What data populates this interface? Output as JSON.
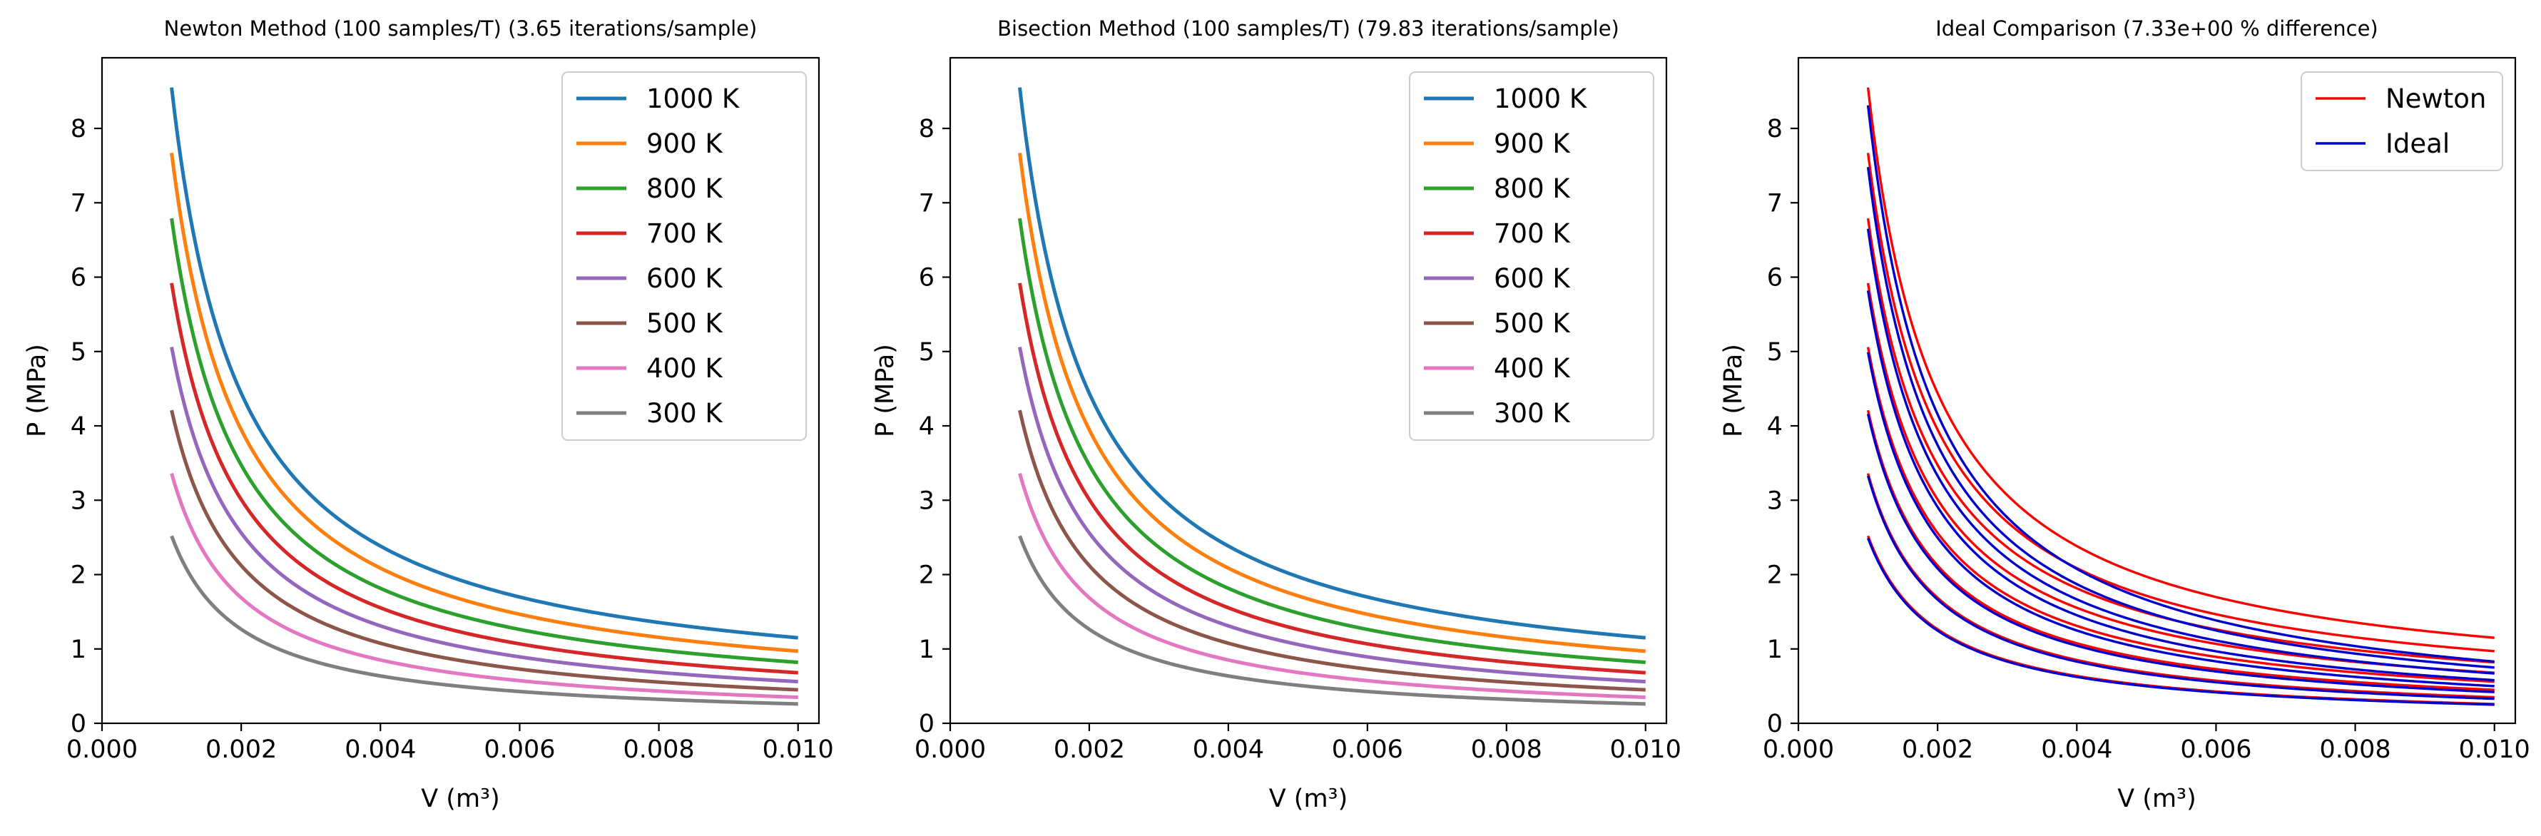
{
  "chart_data": [
    {
      "type": "line",
      "title": "Newton Method (100 samples/T) (3.65 iterations/sample)",
      "xlabel": "V (m³)",
      "ylabel": "P (MPa)",
      "xlim": [
        0,
        0.0103
      ],
      "ylim": [
        0,
        8.95
      ],
      "xticks": [
        "0.000",
        "0.002",
        "0.004",
        "0.006",
        "0.008",
        "0.010"
      ],
      "yticks": [
        "0",
        "1",
        "2",
        "3",
        "4",
        "5",
        "6",
        "7",
        "8"
      ],
      "grid": false,
      "legend_position": "top-right",
      "v_range": [
        0.001,
        0.01
      ],
      "series": [
        {
          "name": "1000 K",
          "color": "#1f77b4",
          "p_at_vmin": 8.55,
          "p_at_vmax": 1.15
        },
        {
          "name": "900 K",
          "color": "#ff7f0e",
          "p_at_vmin": 7.67,
          "p_at_vmax": 0.97
        },
        {
          "name": "800 K",
          "color": "#2ca02c",
          "p_at_vmin": 6.79,
          "p_at_vmax": 0.82
        },
        {
          "name": "700 K",
          "color": "#d62728",
          "p_at_vmin": 5.92,
          "p_at_vmax": 0.68
        },
        {
          "name": "600 K",
          "color": "#9467bd",
          "p_at_vmin": 5.06,
          "p_at_vmax": 0.56
        },
        {
          "name": "500 K",
          "color": "#8c564b",
          "p_at_vmin": 4.21,
          "p_at_vmax": 0.45
        },
        {
          "name": "400 K",
          "color": "#e377c2",
          "p_at_vmin": 3.36,
          "p_at_vmax": 0.35
        },
        {
          "name": "300 K",
          "color": "#7f7f7f",
          "p_at_vmin": 2.52,
          "p_at_vmax": 0.26
        }
      ]
    },
    {
      "type": "line",
      "title": "Bisection Method (100 samples/T) (79.83 iterations/sample)",
      "xlabel": "V (m³)",
      "ylabel": "P (MPa)",
      "xlim": [
        0,
        0.0103
      ],
      "ylim": [
        0,
        8.95
      ],
      "xticks": [
        "0.000",
        "0.002",
        "0.004",
        "0.006",
        "0.008",
        "0.010"
      ],
      "yticks": [
        "0",
        "1",
        "2",
        "3",
        "4",
        "5",
        "6",
        "7",
        "8"
      ],
      "grid": false,
      "legend_position": "top-right",
      "v_range": [
        0.001,
        0.01
      ],
      "series": [
        {
          "name": "1000 K",
          "color": "#1f77b4",
          "p_at_vmin": 8.55,
          "p_at_vmax": 1.15
        },
        {
          "name": "900 K",
          "color": "#ff7f0e",
          "p_at_vmin": 7.67,
          "p_at_vmax": 0.97
        },
        {
          "name": "800 K",
          "color": "#2ca02c",
          "p_at_vmin": 6.79,
          "p_at_vmax": 0.82
        },
        {
          "name": "700 K",
          "color": "#d62728",
          "p_at_vmin": 5.92,
          "p_at_vmax": 0.68
        },
        {
          "name": "600 K",
          "color": "#9467bd",
          "p_at_vmin": 5.06,
          "p_at_vmax": 0.56
        },
        {
          "name": "500 K",
          "color": "#8c564b",
          "p_at_vmin": 4.21,
          "p_at_vmax": 0.45
        },
        {
          "name": "400 K",
          "color": "#e377c2",
          "p_at_vmin": 3.36,
          "p_at_vmax": 0.35
        },
        {
          "name": "300 K",
          "color": "#7f7f7f",
          "p_at_vmin": 2.52,
          "p_at_vmax": 0.26
        }
      ]
    },
    {
      "type": "line",
      "title": "Ideal Comparison (7.33e+00 % difference)",
      "xlabel": "V (m³)",
      "ylabel": "P (MPa)",
      "xlim": [
        0,
        0.0103
      ],
      "ylim": [
        0,
        8.95
      ],
      "xticks": [
        "0.000",
        "0.002",
        "0.004",
        "0.006",
        "0.008",
        "0.010"
      ],
      "yticks": [
        "0",
        "1",
        "2",
        "3",
        "4",
        "5",
        "6",
        "7",
        "8"
      ],
      "grid": false,
      "legend_position": "top-right",
      "v_range": [
        0.001,
        0.01
      ],
      "series": [
        {
          "name": "Newton",
          "color": "#ff0000",
          "curves": [
            {
              "p_at_vmin": 8.55,
              "p_at_vmax": 1.15
            },
            {
              "p_at_vmin": 7.67,
              "p_at_vmax": 0.97
            },
            {
              "p_at_vmin": 6.79,
              "p_at_vmax": 0.82
            },
            {
              "p_at_vmin": 5.92,
              "p_at_vmax": 0.68
            },
            {
              "p_at_vmin": 5.06,
              "p_at_vmax": 0.56
            },
            {
              "p_at_vmin": 4.21,
              "p_at_vmax": 0.45
            },
            {
              "p_at_vmin": 3.36,
              "p_at_vmax": 0.35
            },
            {
              "p_at_vmin": 2.52,
              "p_at_vmax": 0.26
            }
          ]
        },
        {
          "name": "Ideal",
          "color": "#0000cd",
          "curves": [
            {
              "p_at_vmin": 8.31,
              "p_at_vmax": 0.83
            },
            {
              "p_at_vmin": 7.48,
              "p_at_vmax": 0.75
            },
            {
              "p_at_vmin": 6.65,
              "p_at_vmax": 0.67
            },
            {
              "p_at_vmin": 5.82,
              "p_at_vmax": 0.58
            },
            {
              "p_at_vmin": 4.99,
              "p_at_vmax": 0.5
            },
            {
              "p_at_vmin": 4.16,
              "p_at_vmax": 0.42
            },
            {
              "p_at_vmin": 3.33,
              "p_at_vmax": 0.33
            },
            {
              "p_at_vmin": 2.49,
              "p_at_vmax": 0.25
            }
          ]
        }
      ]
    }
  ]
}
